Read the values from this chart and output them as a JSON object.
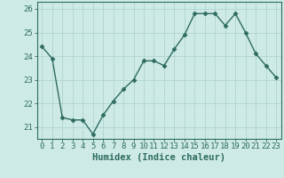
{
  "x": [
    0,
    1,
    2,
    3,
    4,
    5,
    6,
    7,
    8,
    9,
    10,
    11,
    12,
    13,
    14,
    15,
    16,
    17,
    18,
    19,
    20,
    21,
    22,
    23
  ],
  "y": [
    24.4,
    23.9,
    21.4,
    21.3,
    21.3,
    20.7,
    21.5,
    22.1,
    22.6,
    23.0,
    23.8,
    23.8,
    23.6,
    24.3,
    24.9,
    25.8,
    25.8,
    25.8,
    25.3,
    25.8,
    25.0,
    24.1,
    23.6,
    23.1
  ],
  "line_color": "#2d6b5e",
  "marker": "D",
  "marker_size": 2.5,
  "bg_color": "#ceeae7",
  "grid_color": "#b0d4d0",
  "xlabel": "Humidex (Indice chaleur)",
  "ylim": [
    20.5,
    26.3
  ],
  "xlim": [
    -0.5,
    23.5
  ],
  "yticks": [
    21,
    22,
    23,
    24,
    25,
    26
  ],
  "xticks": [
    0,
    1,
    2,
    3,
    4,
    5,
    6,
    7,
    8,
    9,
    10,
    11,
    12,
    13,
    14,
    15,
    16,
    17,
    18,
    19,
    20,
    21,
    22,
    23
  ],
  "text_color": "#2d6b5e",
  "label_fontsize": 7.5,
  "tick_fontsize": 6.5,
  "linewidth": 1.0
}
